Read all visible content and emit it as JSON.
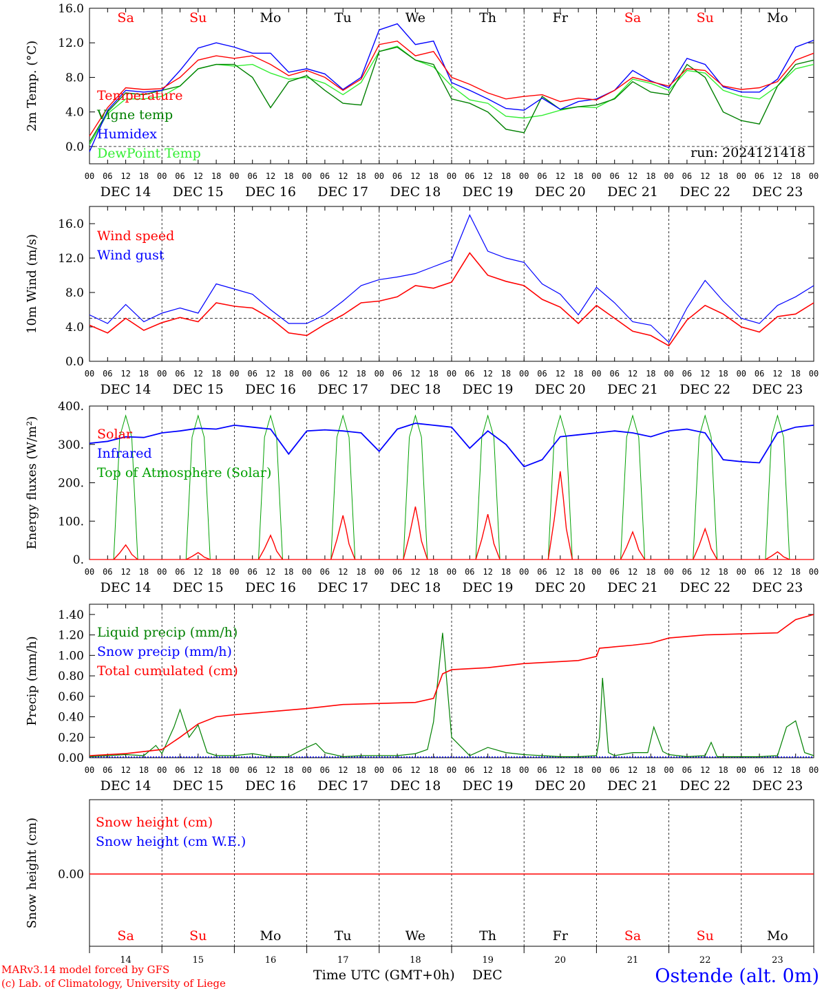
{
  "colors": {
    "temperature": "#ff0000",
    "vigne": "#008000",
    "humidex": "#0000ff",
    "dewpoint": "#33ee33",
    "weekend": "#ff0000",
    "weekday": "#000000",
    "brand": "#0000ff",
    "toa": "#00a000"
  },
  "day_names": [
    "Sa",
    "Su",
    "Mo",
    "Tu",
    "We",
    "Th",
    "Fr",
    "Sa",
    "Su",
    "Mo"
  ],
  "day_weekend": [
    true,
    true,
    false,
    false,
    false,
    false,
    false,
    true,
    true,
    false
  ],
  "date_labels": [
    "DEC 14",
    "DEC 15",
    "DEC 16",
    "DEC 17",
    "DEC 18",
    "DEC 19",
    "DEC 20",
    "DEC 21",
    "DEC 22",
    "DEC 23"
  ],
  "day_numbers": [
    "14",
    "15",
    "16",
    "17",
    "18",
    "19",
    "20",
    "21",
    "22",
    "23"
  ],
  "hour_ticks": [
    "00",
    "06",
    "12",
    "18"
  ],
  "hour_end": "00",
  "run_label": "run: 2024121418",
  "footer": {
    "model": "MARv3.14 model forced by GFS",
    "lab": "(c) Lab. of Climatology, University of Liege",
    "axis": "Time UTC (GMT+0h)",
    "month": "DEC",
    "station": "Ostende (alt. 0m)"
  },
  "chart_data": [
    {
      "type": "line",
      "ylabel": "2m Temp. (°C)",
      "yticks": [
        "16.0",
        "12.0",
        "8.0",
        "4.0",
        "0.0"
      ],
      "ylim": [
        -2,
        16
      ],
      "ref_line": 0,
      "legend": [
        "Temperature",
        "Vigne temp",
        "Humidex",
        "DewPoint Temp"
      ],
      "x_hours": [
        0,
        6,
        12,
        18,
        24,
        30,
        36,
        42,
        48,
        54,
        60,
        66,
        72,
        78,
        84,
        90,
        96,
        102,
        108,
        114,
        120,
        126,
        132,
        138,
        144,
        150,
        156,
        162,
        168,
        174,
        180,
        186,
        192,
        198,
        204,
        210,
        216,
        222,
        228,
        234,
        240
      ],
      "series": [
        {
          "name": "Temperature",
          "values": [
            1.2,
            4.5,
            6.8,
            6.6,
            6.7,
            8.0,
            10.0,
            10.5,
            10.2,
            10.5,
            9.5,
            8.2,
            8.8,
            8.0,
            6.5,
            7.8,
            11.8,
            12.2,
            10.5,
            11.0,
            8.0,
            7.2,
            6.2,
            5.5,
            5.8,
            6.0,
            5.2,
            5.6,
            5.4,
            6.5,
            8.0,
            7.5,
            7.0,
            9.0,
            8.8,
            7.0,
            6.6,
            6.8,
            7.5,
            10.0,
            10.8
          ]
        },
        {
          "name": "Vigne temp",
          "values": [
            0.5,
            4.0,
            6.2,
            6.0,
            6.5,
            7.0,
            9.0,
            9.5,
            9.5,
            8.0,
            4.5,
            7.5,
            8.2,
            6.5,
            5.0,
            4.8,
            11.0,
            11.5,
            10.0,
            9.5,
            5.5,
            5.0,
            4.0,
            2.0,
            1.6,
            5.8,
            4.3,
            4.6,
            4.8,
            5.5,
            7.5,
            6.3,
            6.0,
            9.5,
            8.0,
            4.0,
            3.0,
            2.6,
            7.0,
            9.5,
            10.0
          ]
        },
        {
          "name": "Humidex",
          "values": [
            -0.6,
            4.2,
            6.5,
            6.3,
            6.5,
            8.8,
            11.4,
            12.0,
            11.5,
            10.8,
            10.8,
            8.6,
            9.0,
            8.4,
            6.6,
            8.0,
            13.5,
            14.2,
            11.8,
            12.2,
            7.4,
            6.5,
            5.5,
            4.4,
            4.2,
            5.6,
            4.3,
            5.2,
            5.5,
            6.5,
            8.8,
            7.6,
            6.8,
            10.2,
            9.5,
            6.9,
            6.3,
            6.3,
            7.8,
            11.5,
            12.3
          ]
        },
        {
          "name": "DewPoint Temp",
          "values": [
            0.2,
            3.8,
            5.5,
            5.5,
            5.8,
            7.0,
            9.0,
            9.5,
            9.3,
            9.5,
            8.5,
            7.8,
            8.0,
            7.3,
            6.0,
            7.4,
            11.0,
            11.6,
            10.0,
            9.2,
            7.0,
            5.4,
            5.0,
            3.5,
            3.3,
            3.6,
            4.2,
            4.6,
            4.5,
            5.6,
            7.8,
            7.3,
            6.5,
            8.8,
            8.5,
            6.5,
            5.8,
            5.5,
            7.0,
            9.0,
            9.5
          ]
        }
      ]
    },
    {
      "type": "line",
      "ylabel": "10m Wind (m/s)",
      "yticks": [
        "16.0",
        "12.0",
        "8.0",
        "4.0",
        "0.0"
      ],
      "ylim": [
        0,
        18
      ],
      "ref_line": 5,
      "legend": [
        "Wind speed",
        "Wind gust"
      ],
      "x_hours": [
        0,
        6,
        12,
        18,
        24,
        30,
        36,
        42,
        48,
        54,
        60,
        66,
        72,
        78,
        84,
        90,
        96,
        102,
        108,
        114,
        120,
        126,
        132,
        138,
        144,
        150,
        156,
        162,
        168,
        174,
        180,
        186,
        192,
        198,
        204,
        210,
        216,
        222,
        228,
        234,
        240
      ],
      "series": [
        {
          "name": "Wind speed",
          "values": [
            4.2,
            3.3,
            5.0,
            3.6,
            4.5,
            5.1,
            4.6,
            6.8,
            6.4,
            6.2,
            5.0,
            3.3,
            3.0,
            4.3,
            5.4,
            6.8,
            7.0,
            7.5,
            8.8,
            8.5,
            9.2,
            12.6,
            10.0,
            9.3,
            8.8,
            7.2,
            6.3,
            4.4,
            6.5,
            5.0,
            3.5,
            3.0,
            1.8,
            4.8,
            6.5,
            5.5,
            4.0,
            3.4,
            5.2,
            5.5,
            6.8
          ]
        },
        {
          "name": "Wind gust",
          "values": [
            5.4,
            4.4,
            6.6,
            4.6,
            5.6,
            6.2,
            5.6,
            9.0,
            8.4,
            7.8,
            6.0,
            4.4,
            4.4,
            5.4,
            7.0,
            8.8,
            9.5,
            9.8,
            10.2,
            11.0,
            11.8,
            17.0,
            12.8,
            12.0,
            11.5,
            9.0,
            7.8,
            5.4,
            8.6,
            6.8,
            4.6,
            4.2,
            2.2,
            6.2,
            9.4,
            7.0,
            5.0,
            4.4,
            6.5,
            7.5,
            8.8
          ]
        }
      ]
    },
    {
      "type": "line",
      "ylabel": "Energy fluxes (W/m²)",
      "yticks": [
        "400.",
        "300.",
        "200.",
        "100.",
        "0."
      ],
      "ylim": [
        0,
        400
      ],
      "legend": [
        "Solar",
        "Infrared",
        "Top of Atmosphere (Solar)"
      ],
      "toa_daily_peak": 375,
      "solar_daily_peak": [
        38,
        18,
        63,
        115,
        138,
        118,
        230,
        72,
        80,
        20
      ],
      "infrared_x_hours": [
        0,
        6,
        12,
        18,
        24,
        30,
        36,
        42,
        48,
        54,
        60,
        66,
        72,
        78,
        84,
        90,
        96,
        102,
        108,
        114,
        120,
        126,
        132,
        138,
        144,
        150,
        156,
        162,
        168,
        174,
        180,
        186,
        192,
        198,
        204,
        210,
        216,
        222,
        228,
        234,
        240
      ],
      "infrared_values": [
        303,
        308,
        320,
        318,
        330,
        335,
        342,
        340,
        350,
        345,
        340,
        275,
        335,
        338,
        335,
        330,
        282,
        340,
        355,
        350,
        345,
        290,
        335,
        300,
        242,
        260,
        320,
        325,
        330,
        335,
        330,
        320,
        335,
        340,
        330,
        260,
        255,
        252,
        330,
        345,
        350
      ]
    },
    {
      "type": "line",
      "ylabel": "Precip (mm/h)",
      "yticks": [
        "1.40",
        "1.20",
        "1.00",
        "0.80",
        "0.60",
        "0.40",
        "0.20",
        "0.00"
      ],
      "ylim": [
        0,
        1.5
      ],
      "legend": [
        "Liquid precip (mm/h)",
        "Snow precip (mm/h)",
        "Total cumulated (cm)"
      ],
      "liquid_x_hours": [
        0,
        6,
        12,
        18,
        22,
        24,
        28,
        30,
        33,
        36,
        39,
        42,
        48,
        54,
        60,
        66,
        72,
        75,
        78,
        84,
        90,
        96,
        102,
        108,
        112,
        114,
        117,
        120,
        126,
        132,
        138,
        144,
        150,
        156,
        162,
        168,
        169,
        170,
        172,
        174,
        180,
        185,
        187,
        190,
        192,
        198,
        204,
        206,
        208,
        216,
        222,
        228,
        231,
        234,
        237,
        240
      ],
      "liquid_values": [
        0.01,
        0.02,
        0.03,
        0.02,
        0.12,
        0.04,
        0.3,
        0.47,
        0.2,
        0.32,
        0.05,
        0.02,
        0.02,
        0.04,
        0.01,
        0.01,
        0.1,
        0.14,
        0.05,
        0.01,
        0.02,
        0.02,
        0.02,
        0.04,
        0.08,
        0.35,
        1.22,
        0.2,
        0.02,
        0.1,
        0.05,
        0.03,
        0.02,
        0.01,
        0.01,
        0.02,
        0.2,
        0.78,
        0.05,
        0.02,
        0.05,
        0.05,
        0.3,
        0.06,
        0.03,
        0.01,
        0.02,
        0.15,
        0.01,
        0.01,
        0.01,
        0.02,
        0.3,
        0.36,
        0.05,
        0.02
      ],
      "cumulated_x_hours": [
        0,
        12,
        24,
        30,
        36,
        42,
        48,
        60,
        72,
        84,
        96,
        108,
        114,
        117,
        120,
        132,
        144,
        156,
        162,
        168,
        169,
        180,
        186,
        192,
        204,
        216,
        228,
        234,
        240
      ],
      "cumulated_values": [
        0.02,
        0.04,
        0.08,
        0.2,
        0.33,
        0.4,
        0.42,
        0.45,
        0.48,
        0.52,
        0.53,
        0.54,
        0.58,
        0.82,
        0.86,
        0.88,
        0.92,
        0.94,
        0.95,
        0.99,
        1.07,
        1.1,
        1.12,
        1.17,
        1.2,
        1.21,
        1.22,
        1.35,
        1.4
      ]
    },
    {
      "type": "line",
      "ylabel": "Snow height (cm)",
      "yticks": [
        "0.00"
      ],
      "legend": [
        "Snow height (cm)",
        "Snow height (cm W.E.)"
      ],
      "series": [
        {
          "name": "Snow height (cm)",
          "values": [
            0,
            0
          ]
        },
        {
          "name": "Snow height (cm W.E.)",
          "values": [
            0,
            0
          ]
        }
      ]
    }
  ]
}
